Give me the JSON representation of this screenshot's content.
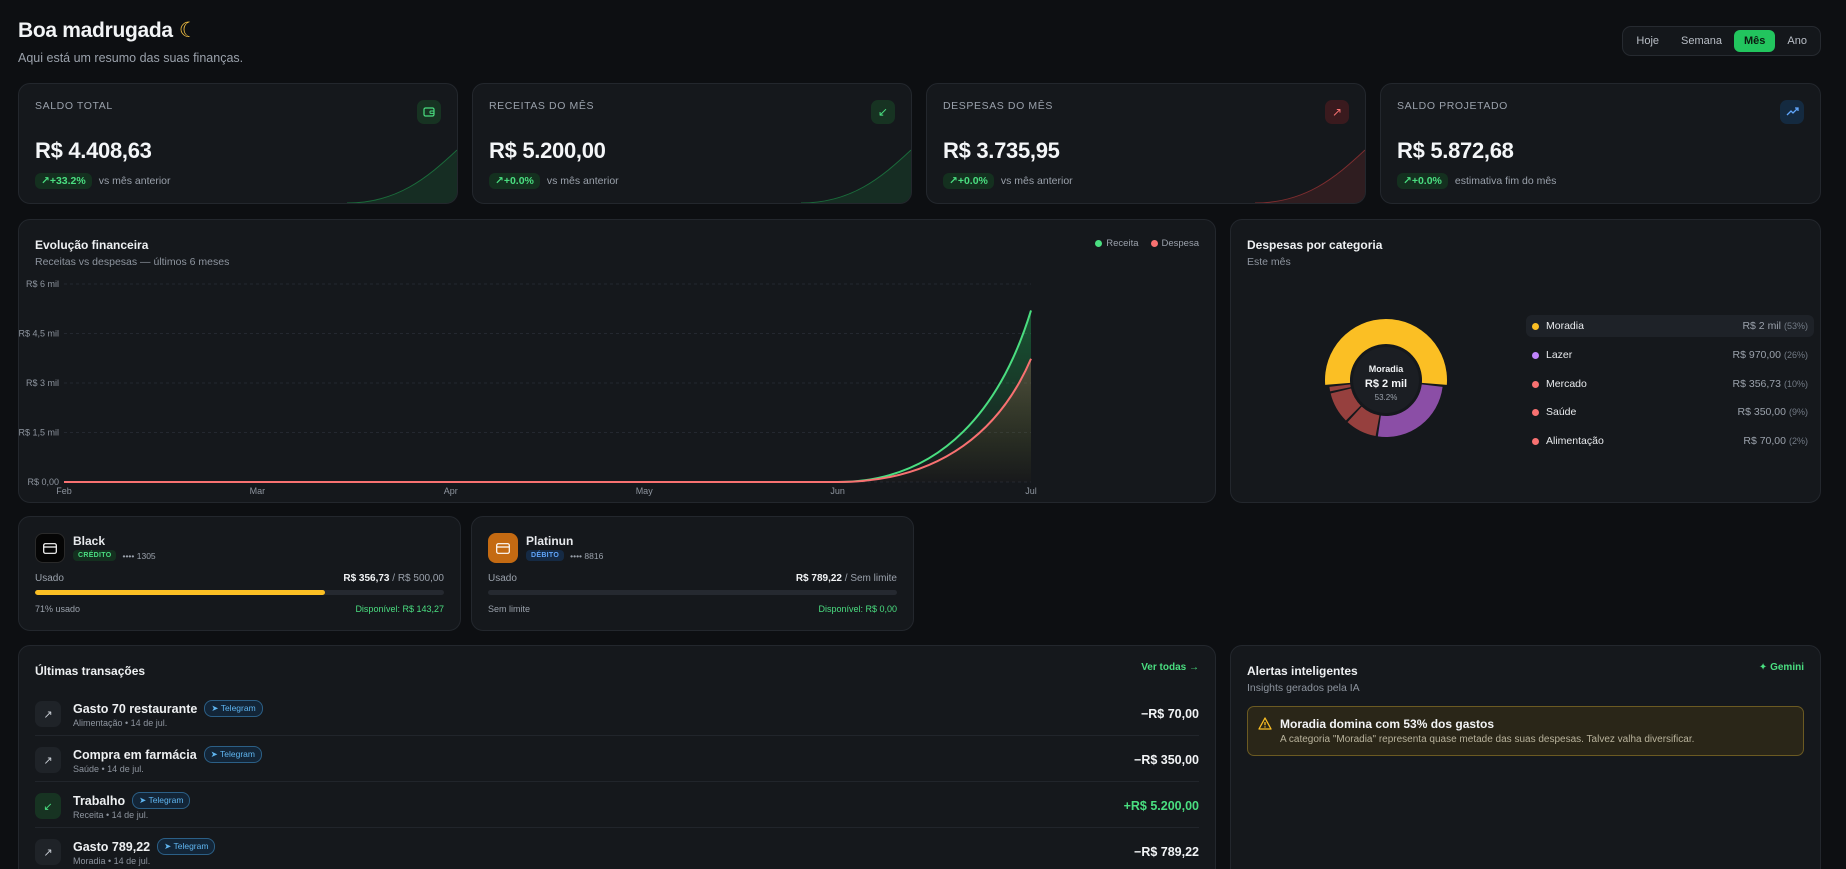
{
  "header": {
    "greeting": "Boa madrugada",
    "greeting_icon": "moon-icon",
    "subtitle": "Aqui está um resumo das suas finanças."
  },
  "period": {
    "options": [
      "Hoje",
      "Semana",
      "Mês",
      "Ano"
    ],
    "selected": "Mês"
  },
  "kpis": [
    {
      "label": "SALDO TOTAL",
      "value": "R$ 4.408,63",
      "change": "+33.2%",
      "note": "vs mês anterior",
      "icon": "wallet-icon",
      "color": "#22c55e"
    },
    {
      "label": "RECEITAS DO MÊS",
      "value": "R$ 5.200,00",
      "change": "+0.0%",
      "note": "vs mês anterior",
      "icon": "arrow-down-left-icon",
      "color": "#22c55e"
    },
    {
      "label": "DESPESAS DO MÊS",
      "value": "R$ 3.735,95",
      "change": "+0.0%",
      "note": "vs mês anterior",
      "icon": "arrow-up-right-icon",
      "color": "#ef4444"
    },
    {
      "label": "SALDO PROJETADO",
      "value": "R$ 5.872,68",
      "change": "+0.0%",
      "note": "estimativa fim do mês",
      "icon": "trending-up-icon",
      "color": "#3b82f6"
    }
  ],
  "evolution": {
    "title": "Evolução financeira",
    "subtitle": "Receitas vs despesas — últimos 6 meses",
    "legend": [
      "Receita",
      "Despesa"
    ]
  },
  "chart_data": {
    "type": "area",
    "x": [
      "Feb",
      "Mar",
      "Apr",
      "May",
      "Jun",
      "Jul"
    ],
    "series": [
      {
        "name": "Receita",
        "color": "#4ade80",
        "values": [
          0,
          0,
          0,
          0,
          0,
          5200
        ]
      },
      {
        "name": "Despesa",
        "color": "#f87171",
        "values": [
          0,
          0,
          0,
          0,
          0,
          3735.95
        ]
      }
    ],
    "ylim": [
      0,
      6000
    ],
    "yticks": [
      0,
      1500,
      3000,
      4500,
      6000
    ],
    "ytick_labels": [
      "R$ 0,00",
      "R$ 1,5 mil",
      "R$ 3 mil",
      "R$ 4,5 mil",
      "R$ 6 mil"
    ],
    "grid": true,
    "legend_position": "top-right"
  },
  "categories": {
    "title": "Despesas por categoria",
    "subtitle": "Este mês",
    "center_name": "Moradia",
    "center_value": "R$ 2 mil",
    "center_pct": "53.2%",
    "items": [
      {
        "name": "Moradia",
        "value": "R$ 2 mil",
        "pct": "(53%)",
        "share": 53.2,
        "color": "#fbbf24"
      },
      {
        "name": "Lazer",
        "value": "R$ 970,00",
        "pct": "(26%)",
        "share": 26,
        "color": "#c084fc"
      },
      {
        "name": "Mercado",
        "value": "R$ 356,73",
        "pct": "(10%)",
        "share": 9.5,
        "color": "#f87171"
      },
      {
        "name": "Saúde",
        "value": "R$ 350,00",
        "pct": "(9%)",
        "share": 9.4,
        "color": "#f87171"
      },
      {
        "name": "Alimentação",
        "value": "R$ 70,00",
        "pct": "(2%)",
        "share": 1.9,
        "color": "#f87171"
      }
    ]
  },
  "cards": [
    {
      "name": "Black",
      "type": "CRÉDITO",
      "number": "•••• 1305",
      "used_label": "Usado",
      "used": "R$ 356,73",
      "limit": "/ R$ 500,00",
      "usage_text": "71% usado",
      "available": "Disponível: R$ 143,27",
      "usage": 0.71
    },
    {
      "name": "Platinun",
      "type": "DÉBITO",
      "number": "•••• 8816",
      "used_label": "Usado",
      "used": "R$ 789,22",
      "limit": "/ Sem limite",
      "usage_text": "Sem limite",
      "available": "Disponível: R$ 0,00",
      "usage": 0
    }
  ],
  "transactions": {
    "title": "Últimas transações",
    "view_all": "Ver todas →",
    "items": [
      {
        "title": "Gasto 70 restaurante",
        "tag": "Telegram",
        "sub": "Alimentação • 14 de jul.",
        "amount": "−R$ 70,00",
        "kind": "expense"
      },
      {
        "title": "Compra em farmácia",
        "tag": "Telegram",
        "sub": "Saúde • 14 de jul.",
        "amount": "−R$ 350,00",
        "kind": "expense"
      },
      {
        "title": "Trabalho",
        "tag": "Telegram",
        "sub": "Receita • 14 de jul.",
        "amount": "+R$ 5.200,00",
        "kind": "income"
      },
      {
        "title": "Gasto 789,22",
        "tag": "Telegram",
        "sub": "Moradia • 14 de jul.",
        "amount": "−R$ 789,22",
        "kind": "expense"
      }
    ]
  },
  "alerts": {
    "title": "Alertas inteligentes",
    "subtitle": "Insights gerados pela IA",
    "badge": "Gemini",
    "item": {
      "title": "Moradia domina com 53% dos gastos",
      "text": "A categoria \"Moradia\" representa quase metade das suas despesas. Talvez valha diversificar."
    }
  }
}
